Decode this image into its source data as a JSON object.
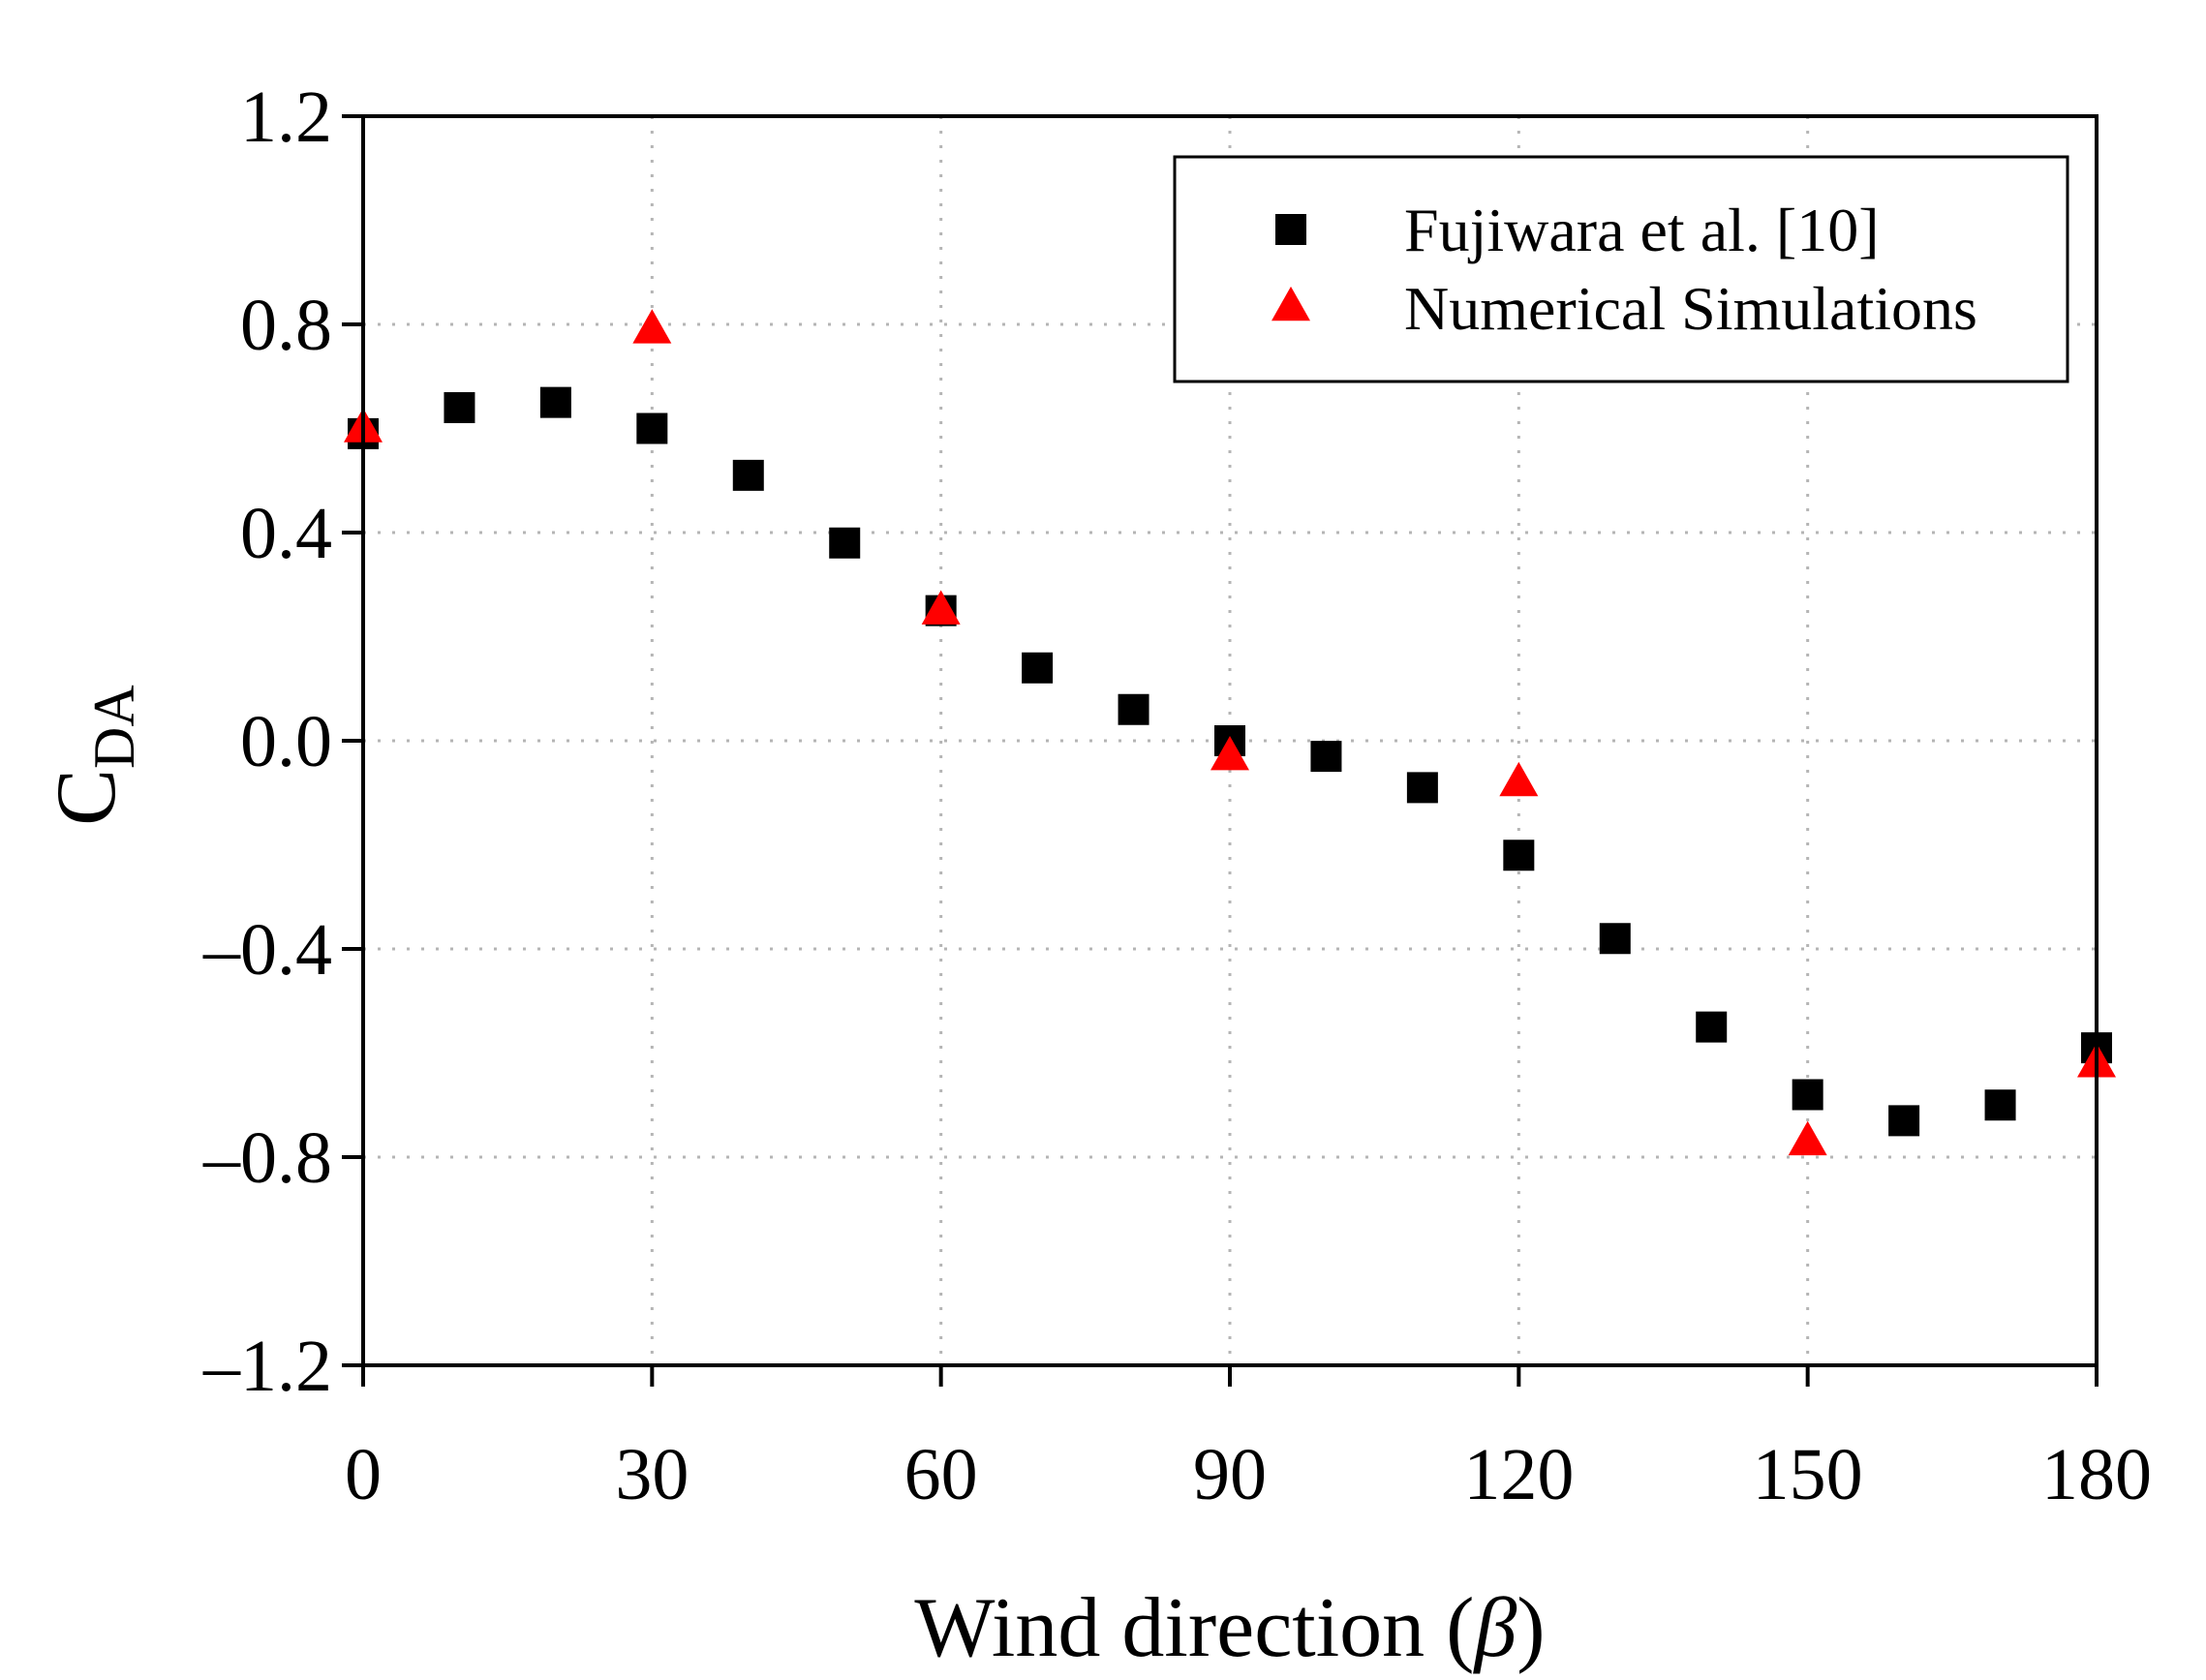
{
  "chart_data": {
    "type": "scatter",
    "title": "",
    "xlabel": "Wind direction (β)",
    "xlabel_text": "Wind direction (",
    "xlabel_symbol": "β",
    "xlabel_close": ")",
    "ylabel": "C_DA",
    "ylabel_main": "C",
    "ylabel_sub": "DA",
    "xlim": [
      0,
      180
    ],
    "ylim": [
      -1.2,
      1.2
    ],
    "xticks": [
      0,
      30,
      60,
      90,
      120,
      150,
      180
    ],
    "xtick_labels": [
      "0",
      "30",
      "60",
      "90",
      "120",
      "150",
      "180"
    ],
    "yticks": [
      1.2,
      0.8,
      0.4,
      0.0,
      -0.4,
      -0.8,
      -1.2
    ],
    "ytick_labels": [
      "1.2",
      "0.8",
      "0.4",
      "0.0",
      "–0.4",
      "–0.8",
      "–1.2"
    ],
    "grid": true,
    "legend_position": "top-right",
    "series": [
      {
        "name": "Fujiwara et al. [10]",
        "marker": "square",
        "color": "#000000",
        "x": [
          0,
          10,
          20,
          30,
          40,
          50,
          60,
          70,
          80,
          90,
          100,
          110,
          120,
          130,
          140,
          150,
          160,
          170,
          180
        ],
        "y": [
          0.59,
          0.64,
          0.65,
          0.6,
          0.51,
          0.38,
          0.25,
          0.14,
          0.06,
          0.0,
          -0.03,
          -0.09,
          -0.22,
          -0.38,
          -0.55,
          -0.68,
          -0.73,
          -0.7,
          -0.59
        ]
      },
      {
        "name": "Numerical Simulations",
        "marker": "triangle",
        "color": "#ff0000",
        "x": [
          0,
          30,
          60,
          90,
          120,
          150,
          180
        ],
        "y": [
          0.6,
          0.79,
          0.25,
          -0.03,
          -0.08,
          -0.77,
          -0.62
        ]
      }
    ]
  }
}
